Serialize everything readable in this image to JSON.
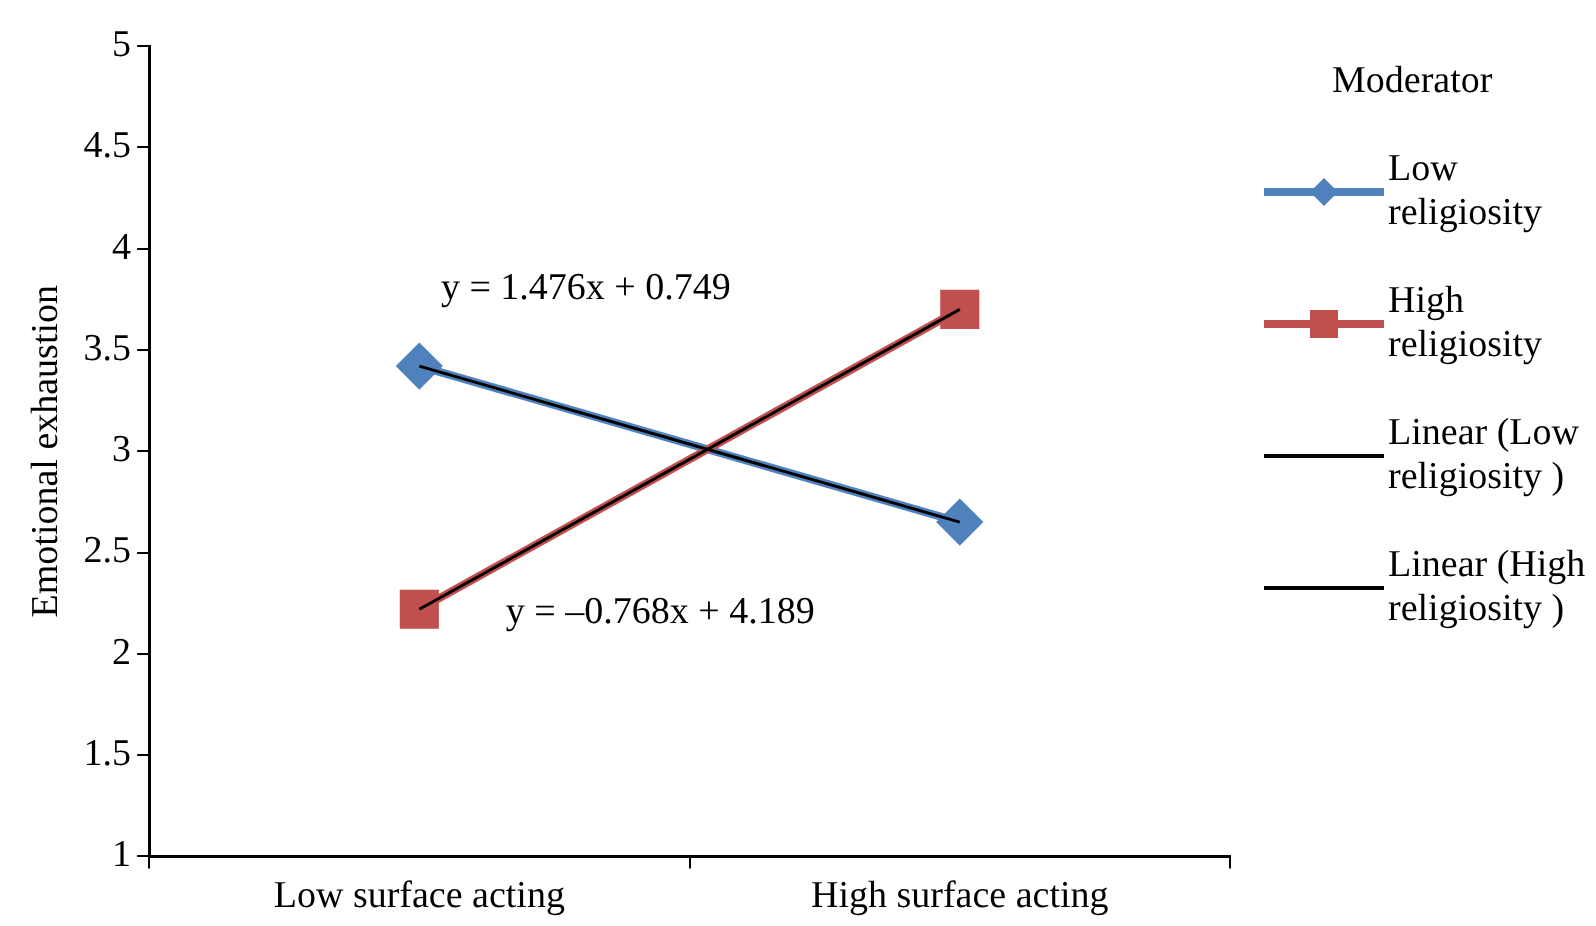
{
  "chart_data": {
    "type": "line",
    "ylabel": "Emotional exhaustion",
    "legend_title": "Moderator",
    "categories": [
      "Low surface acting",
      "High surface acting"
    ],
    "series": [
      {
        "name": "Low religiosity",
        "color": "#4f81bd",
        "values": [
          3.42,
          2.65
        ],
        "marker": "diamond"
      },
      {
        "name": "High religiosity",
        "color": "#c0504d",
        "values": [
          2.22,
          3.7
        ],
        "marker": "square"
      },
      {
        "name": "Linear (Low religiosity )",
        "color": "#000000",
        "values": [
          3.42,
          2.65
        ],
        "marker": "none"
      },
      {
        "name": "Linear (High religiosity )",
        "color": "#000000",
        "values": [
          2.22,
          3.7
        ],
        "marker": "none"
      }
    ],
    "ylim": [
      1,
      5
    ],
    "yticks": [
      1,
      1.5,
      2,
      2.5,
      3,
      3.5,
      4,
      4.5,
      5
    ],
    "grid": false,
    "legend": "right",
    "line_style": "solid",
    "annotations": [
      "y = 1.476x + 0.749",
      "y = –0.768x + 4.189"
    ]
  }
}
